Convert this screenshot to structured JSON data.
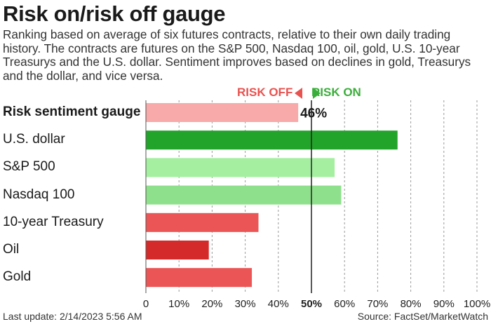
{
  "chart_data": {
    "type": "bar",
    "orientation": "horizontal",
    "title": "Risk on/risk off gauge",
    "subtitle": "Ranking based on average of six futures contracts, relative to their own daily trading history. The contracts are futures on the S&P 500, Nasdaq 100, oil, gold, U.S. 10-year Treasurys and the U.S. dollar. Sentiment improves based on declines in gold, Treasurys and the dollar, and vice versa.",
    "legend": {
      "off": "RISK OFF",
      "on": "RISK ON"
    },
    "categories": [
      "Risk sentiment gauge",
      "U.S. dollar",
      "S&P 500",
      "Nasdaq 100",
      "10-year Treasury",
      "Oil",
      "Gold"
    ],
    "values": [
      46,
      76,
      57,
      59,
      34,
      19,
      32
    ],
    "colors": [
      "#f7aaa9",
      "#22a32a",
      "#a4f0a0",
      "#8fe08c",
      "#eb5555",
      "#d42a2a",
      "#eb5555"
    ],
    "data_labels": [
      "46%",
      "",
      "",
      "",
      "",
      "",
      ""
    ],
    "xlim": [
      0,
      100
    ],
    "xticks": [
      0,
      10,
      20,
      30,
      40,
      50,
      60,
      70,
      80,
      90,
      100
    ],
    "xtick_labels": [
      "0",
      "10%",
      "20%",
      "30%",
      "40%",
      "50%",
      "60%",
      "70%",
      "80%",
      "90%",
      "100%"
    ],
    "midline": 50,
    "grid": "vertical dashed"
  },
  "footer": {
    "last_update": "Last update: 2/14/2023 5:56 AM",
    "source": "Source: FactSet/MarketWatch"
  }
}
